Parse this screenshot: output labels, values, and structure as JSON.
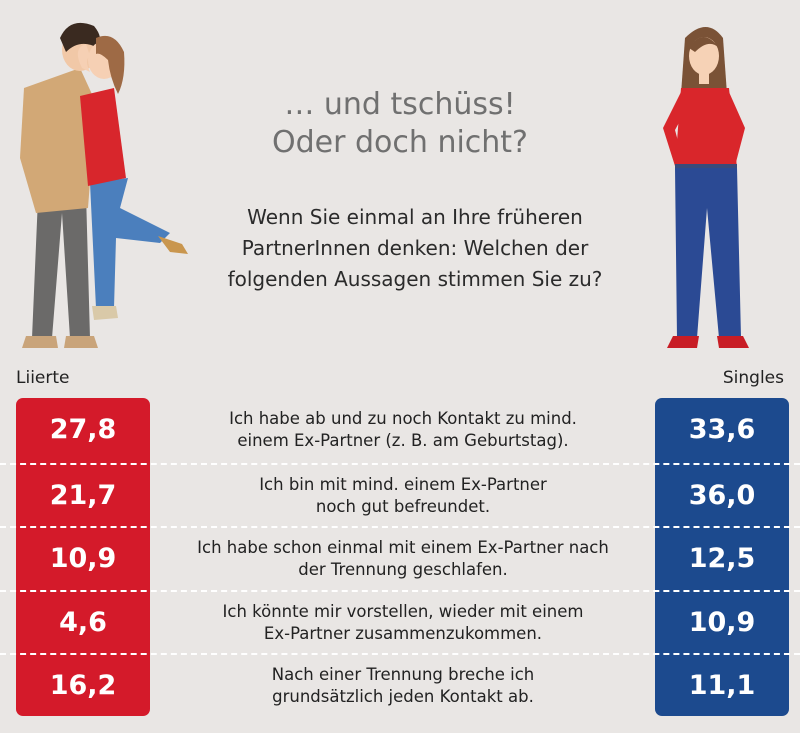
{
  "title": "… und tschüss!\nOder doch nicht?",
  "title_line1": "… und tschüss!",
  "title_line2": "Oder doch nicht?",
  "question_line1": "Wenn Sie einmal an Ihre früheren",
  "question_line2": "PartnerInnen denken: Welchen der",
  "question_line3": "folgenden Aussagen stimmen Sie zu?",
  "colors": {
    "liierte": "#d41a2a",
    "singles": "#1c4a8e",
    "background": "#e9e6e4"
  },
  "chart_data": {
    "type": "table",
    "title": "… und tschüss! Oder doch nicht?",
    "columns": [
      "Liierte",
      "Singles"
    ],
    "categories": [
      "Ich habe ab und zu noch Kontakt zu mind. einem Ex-Partner (z. B. am Geburtstag).",
      "Ich bin mit mind. einem Ex-Partner noch gut befreundet.",
      "Ich habe schon einmal mit einem Ex-Partner nach der Trennung geschlafen.",
      "Ich könnte mir vorstellen, wieder mit einem Ex-Partner zusammenzukommen.",
      "Nach einer Trennung breche ich grundsätzlich jeden Kontakt ab."
    ],
    "series": [
      {
        "name": "Liierte",
        "values": [
          "27,8",
          "21,7",
          "10,9",
          "4,6",
          "16,2"
        ]
      },
      {
        "name": "Singles",
        "values": [
          "33,6",
          "36,0",
          "12,5",
          "10,9",
          "11,1"
        ]
      }
    ]
  },
  "rows": [
    {
      "statement": "Ich habe ab und zu noch Kontakt zu mind.\neinem Ex-Partner (z. B. am Geburtstag).",
      "liierte": "27,8",
      "singles": "33,6"
    },
    {
      "statement": "Ich bin mit mind. einem Ex-Partner\nnoch gut befreundet.",
      "liierte": "21,7",
      "singles": "36,0"
    },
    {
      "statement": "Ich habe schon einmal mit einem Ex-Partner nach\nder Trennung geschlafen.",
      "liierte": "10,9",
      "singles": "12,5"
    },
    {
      "statement": "Ich könnte mir vorstellen, wieder mit einem\nEx-Partner zusammenzukommen.",
      "liierte": "4,6",
      "singles": "10,9"
    },
    {
      "statement": "Nach einer Trennung breche ich\ngrundsätzlich jeden Kontakt ab.",
      "liierte": "16,2",
      "singles": "11,1"
    }
  ],
  "labels": {
    "left": "Liierte",
    "right": "Singles"
  }
}
